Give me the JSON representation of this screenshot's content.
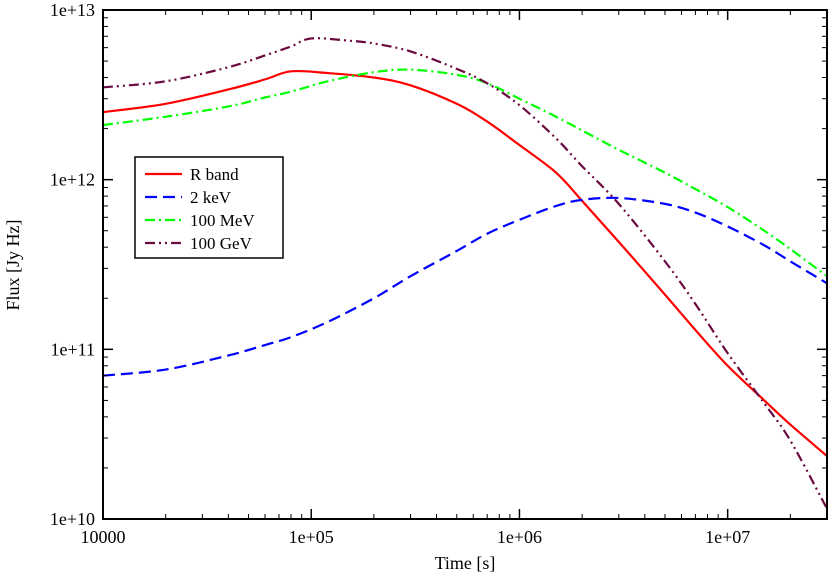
{
  "chart_data": {
    "type": "line",
    "title": "",
    "xlabel": "Time [s]",
    "ylabel": "Flux [Jy Hz]",
    "xscale": "log",
    "yscale": "log",
    "xlim": [
      10000,
      30000000
    ],
    "ylim": [
      10000000000.0,
      10000000000000.0
    ],
    "grid": false,
    "legend_position": "upper-left",
    "xticks": [
      {
        "value": 10000,
        "label": "10000"
      },
      {
        "value": 100000,
        "label": "1e+05"
      },
      {
        "value": 1000000,
        "label": "1e+06"
      },
      {
        "value": 10000000,
        "label": "1e+07"
      }
    ],
    "yticks": [
      {
        "value": 10000000000.0,
        "label": "1e+10"
      },
      {
        "value": 100000000000.0,
        "label": "1e+11"
      },
      {
        "value": 1000000000000.0,
        "label": "1e+12"
      },
      {
        "value": 10000000000000.0,
        "label": "1e+13"
      }
    ],
    "series": [
      {
        "name": "R band",
        "color": "#ff0000",
        "dash": "solid",
        "x": [
          10000,
          20000,
          40000,
          60000,
          80000,
          120000,
          200000,
          300000,
          500000,
          700000,
          1000000,
          1500000,
          2000000,
          3000000,
          5000000,
          7000000,
          10000000,
          15000000,
          20000000,
          30000000
        ],
        "y": [
          2500000000000.0,
          2800000000000.0,
          3400000000000.0,
          3900000000000.0,
          4350000000000.0,
          4250000000000.0,
          4000000000000.0,
          3600000000000.0,
          2800000000000.0,
          2200000000000.0,
          1600000000000.0,
          1100000000000.0,
          750000000000.0,
          430000000000.0,
          210000000000.0,
          130000000000.0,
          80000000000.0,
          50000000000.0,
          36000000000.0,
          23500000000.0
        ]
      },
      {
        "name": "2 keV",
        "color": "#0000ff",
        "dash": "dashed",
        "x": [
          10000,
          20000,
          40000,
          60000,
          80000,
          120000,
          200000,
          300000,
          500000,
          700000,
          1000000,
          1500000,
          2000000,
          3000000,
          5000000,
          7000000,
          10000000,
          15000000,
          20000000,
          30000000
        ],
        "y": [
          70000000000.0,
          76000000000.0,
          92000000000.0,
          106000000000.0,
          118000000000.0,
          145000000000.0,
          200000000000.0,
          270000000000.0,
          380000000000.0,
          480000000000.0,
          580000000000.0,
          700000000000.0,
          760000000000.0,
          780000000000.0,
          720000000000.0,
          640000000000.0,
          530000000000.0,
          410000000000.0,
          330000000000.0,
          245000000000.0
        ]
      },
      {
        "name": "100 MeV",
        "color": "#00ff00",
        "dash": "dashdot",
        "x": [
          10000,
          20000,
          40000,
          60000,
          80000,
          120000,
          200000,
          300000,
          500000,
          700000,
          1000000,
          1500000,
          2000000,
          3000000,
          5000000,
          7000000,
          10000000,
          15000000,
          20000000,
          30000000
        ],
        "y": [
          2100000000000.0,
          2350000000000.0,
          2700000000000.0,
          3050000000000.0,
          3300000000000.0,
          3800000000000.0,
          4300000000000.0,
          4450000000000.0,
          4150000000000.0,
          3700000000000.0,
          3000000000000.0,
          2350000000000.0,
          1950000000000.0,
          1500000000000.0,
          1100000000000.0,
          880000000000.0,
          690000000000.0,
          500000000000.0,
          390000000000.0,
          270000000000.0
        ]
      },
      {
        "name": "100 GeV",
        "color": "#6b0a40",
        "dash": "dashdotdot",
        "x": [
          10000,
          20000,
          40000,
          60000,
          80000,
          100000,
          150000,
          200000,
          300000,
          500000,
          700000,
          1000000,
          1500000,
          2000000,
          3000000,
          5000000,
          7000000,
          10000000,
          15000000,
          20000000,
          30000000
        ],
        "y": [
          3500000000000.0,
          3800000000000.0,
          4600000000000.0,
          5400000000000.0,
          6100000000000.0,
          6800000000000.0,
          6600000000000.0,
          6350000000000.0,
          5700000000000.0,
          4500000000000.0,
          3700000000000.0,
          2750000000000.0,
          1750000000000.0,
          1200000000000.0,
          720000000000.0,
          330000000000.0,
          185000000000.0,
          95000000000.0,
          48000000000.0,
          29000000000.0,
          11500000000.0
        ]
      }
    ]
  }
}
